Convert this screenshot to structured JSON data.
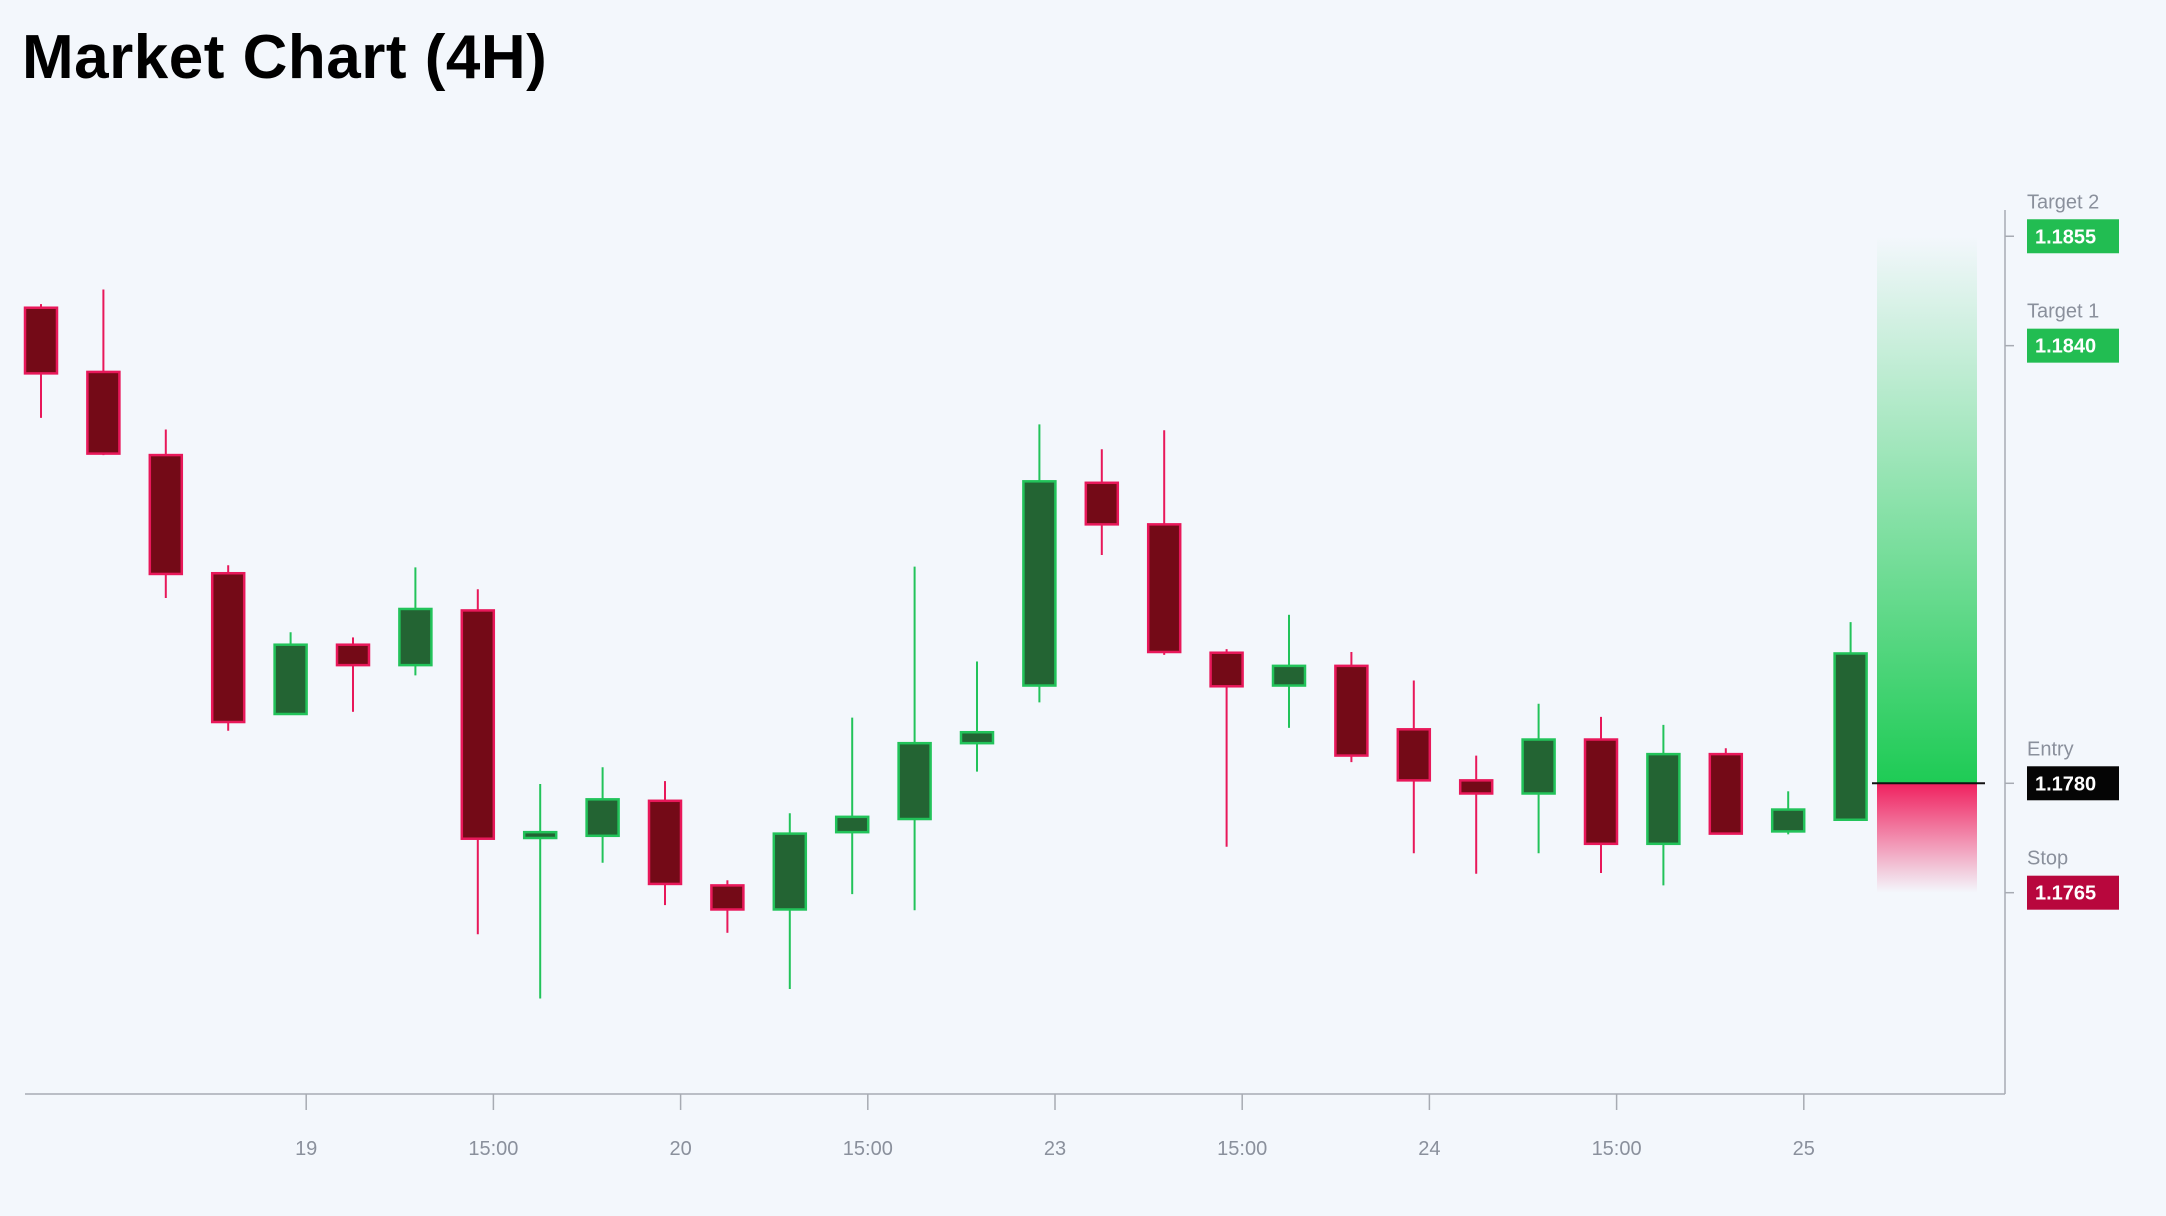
{
  "title": "Market Chart (4H)",
  "chart_data": {
    "type": "candlestick",
    "title": "Market Chart (4H)",
    "ylim": [
      1.17374,
      1.18586
    ],
    "x_tick_labels": [
      "19",
      "15:00",
      "20",
      "15:00",
      "23",
      "15:00",
      "24",
      "15:00",
      "25"
    ],
    "x_tick_positions": [
      4.25,
      7.25,
      10.25,
      13.25,
      16.25,
      19.25,
      22.25,
      25.25,
      28.25
    ],
    "candles": [
      {
        "i": 0,
        "open": 1.18452,
        "high": 1.18457,
        "low": 1.18301,
        "close": 1.18362
      },
      {
        "i": 1,
        "open": 1.18364,
        "high": 1.18477,
        "low": 1.1825,
        "close": 1.18252
      },
      {
        "i": 2,
        "open": 1.1825,
        "high": 1.18285,
        "low": 1.18054,
        "close": 1.18087
      },
      {
        "i": 3,
        "open": 1.18088,
        "high": 1.18099,
        "low": 1.17872,
        "close": 1.17884
      },
      {
        "i": 4,
        "open": 1.17895,
        "high": 1.18007,
        "low": 1.17895,
        "close": 1.1799
      },
      {
        "i": 5,
        "open": 1.1799,
        "high": 1.18,
        "low": 1.17898,
        "close": 1.17962
      },
      {
        "i": 6,
        "open": 1.17962,
        "high": 1.18096,
        "low": 1.17948,
        "close": 1.18039
      },
      {
        "i": 7,
        "open": 1.18037,
        "high": 1.18066,
        "low": 1.17593,
        "close": 1.17724
      },
      {
        "i": 8,
        "open": 1.17725,
        "high": 1.17799,
        "low": 1.17505,
        "close": 1.17733
      },
      {
        "i": 9,
        "open": 1.17728,
        "high": 1.17822,
        "low": 1.17691,
        "close": 1.17778
      },
      {
        "i": 10,
        "open": 1.17776,
        "high": 1.17803,
        "low": 1.17633,
        "close": 1.17662
      },
      {
        "i": 11,
        "open": 1.1766,
        "high": 1.17667,
        "low": 1.17595,
        "close": 1.17627
      },
      {
        "i": 12,
        "open": 1.17627,
        "high": 1.17759,
        "low": 1.17518,
        "close": 1.17731
      },
      {
        "i": 13,
        "open": 1.17733,
        "high": 1.1789,
        "low": 1.17648,
        "close": 1.17754
      },
      {
        "i": 14,
        "open": 1.17751,
        "high": 1.18097,
        "low": 1.17626,
        "close": 1.17855
      },
      {
        "i": 15,
        "open": 1.17855,
        "high": 1.17967,
        "low": 1.17816,
        "close": 1.1787
      },
      {
        "i": 16,
        "open": 1.17934,
        "high": 1.18292,
        "low": 1.17911,
        "close": 1.18214
      },
      {
        "i": 17,
        "open": 1.18212,
        "high": 1.18258,
        "low": 1.18113,
        "close": 1.18155
      },
      {
        "i": 18,
        "open": 1.18155,
        "high": 1.18284,
        "low": 1.17976,
        "close": 1.1798
      },
      {
        "i": 19,
        "open": 1.17979,
        "high": 1.17984,
        "low": 1.17713,
        "close": 1.17933
      },
      {
        "i": 20,
        "open": 1.17934,
        "high": 1.18031,
        "low": 1.17876,
        "close": 1.17961
      },
      {
        "i": 21,
        "open": 1.17961,
        "high": 1.1798,
        "low": 1.17829,
        "close": 1.17838
      },
      {
        "i": 22,
        "open": 1.17874,
        "high": 1.17941,
        "low": 1.17704,
        "close": 1.17804
      },
      {
        "i": 23,
        "open": 1.17804,
        "high": 1.17838,
        "low": 1.17676,
        "close": 1.17786
      },
      {
        "i": 24,
        "open": 1.17786,
        "high": 1.17909,
        "low": 1.17704,
        "close": 1.1786
      },
      {
        "i": 25,
        "open": 1.1786,
        "high": 1.17891,
        "low": 1.17677,
        "close": 1.17717
      },
      {
        "i": 26,
        "open": 1.17717,
        "high": 1.1788,
        "low": 1.1766,
        "close": 1.1784
      },
      {
        "i": 27,
        "open": 1.1784,
        "high": 1.17848,
        "low": 1.1773,
        "close": 1.17731
      },
      {
        "i": 28,
        "open": 1.17734,
        "high": 1.17789,
        "low": 1.1773,
        "close": 1.17764
      },
      {
        "i": 29,
        "open": 1.1775,
        "high": 1.18021,
        "low": 1.1775,
        "close": 1.17978
      }
    ],
    "levels": [
      {
        "label": "Target 2",
        "value": "1.1855",
        "price": 1.1855,
        "kind": "target"
      },
      {
        "label": "Target 1",
        "value": "1.1840",
        "price": 1.184,
        "kind": "target"
      },
      {
        "label": "Entry",
        "value": "1.1780",
        "price": 1.178,
        "kind": "entry"
      },
      {
        "label": "Stop",
        "value": "1.1765",
        "price": 1.1765,
        "kind": "stop"
      }
    ],
    "colors": {
      "bull_body": "#236433",
      "bull_border": "#22c35a",
      "bear_body": "#740a17",
      "bear_border": "#e8185a",
      "target": "#22bd52",
      "entry": "#050505",
      "stop": "#b8073d",
      "axis": "#a7abb3",
      "background": "#f3f7fc"
    }
  }
}
